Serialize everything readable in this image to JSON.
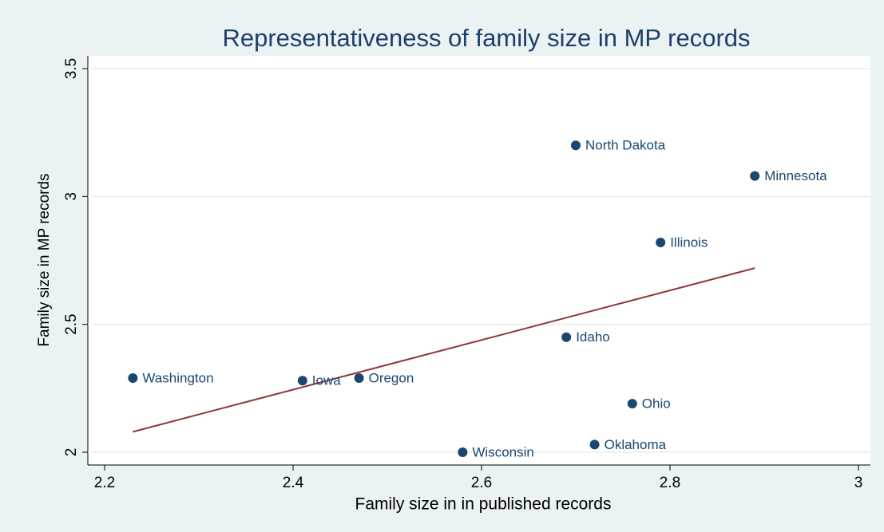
{
  "chart_data": {
    "type": "scatter",
    "title": "Representativeness of family size in MP records",
    "x_label": "Family size in  in published records",
    "y_label": "Family size in MP records",
    "labels": [
      "Washington",
      "Iowa",
      "Oregon",
      "Wisconsin",
      "Idaho",
      "North Dakota",
      "Oklahoma",
      "Ohio",
      "Illinois",
      "Minnesota"
    ],
    "x": [
      2.23,
      2.41,
      2.47,
      2.58,
      2.69,
      2.7,
      2.72,
      2.76,
      2.79,
      2.89
    ],
    "values": [
      2.29,
      2.28,
      2.29,
      2.0,
      2.45,
      3.2,
      2.03,
      2.19,
      2.82,
      3.08
    ],
    "color": "#1a476f",
    "fit_line": {
      "x": [
        2.23,
        2.89
      ],
      "values": [
        2.08,
        2.72
      ],
      "color": "#90353b"
    },
    "xlim": [
      2.2,
      3
    ],
    "xticks": [
      2.2,
      2.4,
      2.6,
      2.8,
      3
    ],
    "ylim": [
      2,
      3.5
    ],
    "yticks": [
      2,
      2.5,
      3,
      3.5
    ],
    "grid": true
  }
}
